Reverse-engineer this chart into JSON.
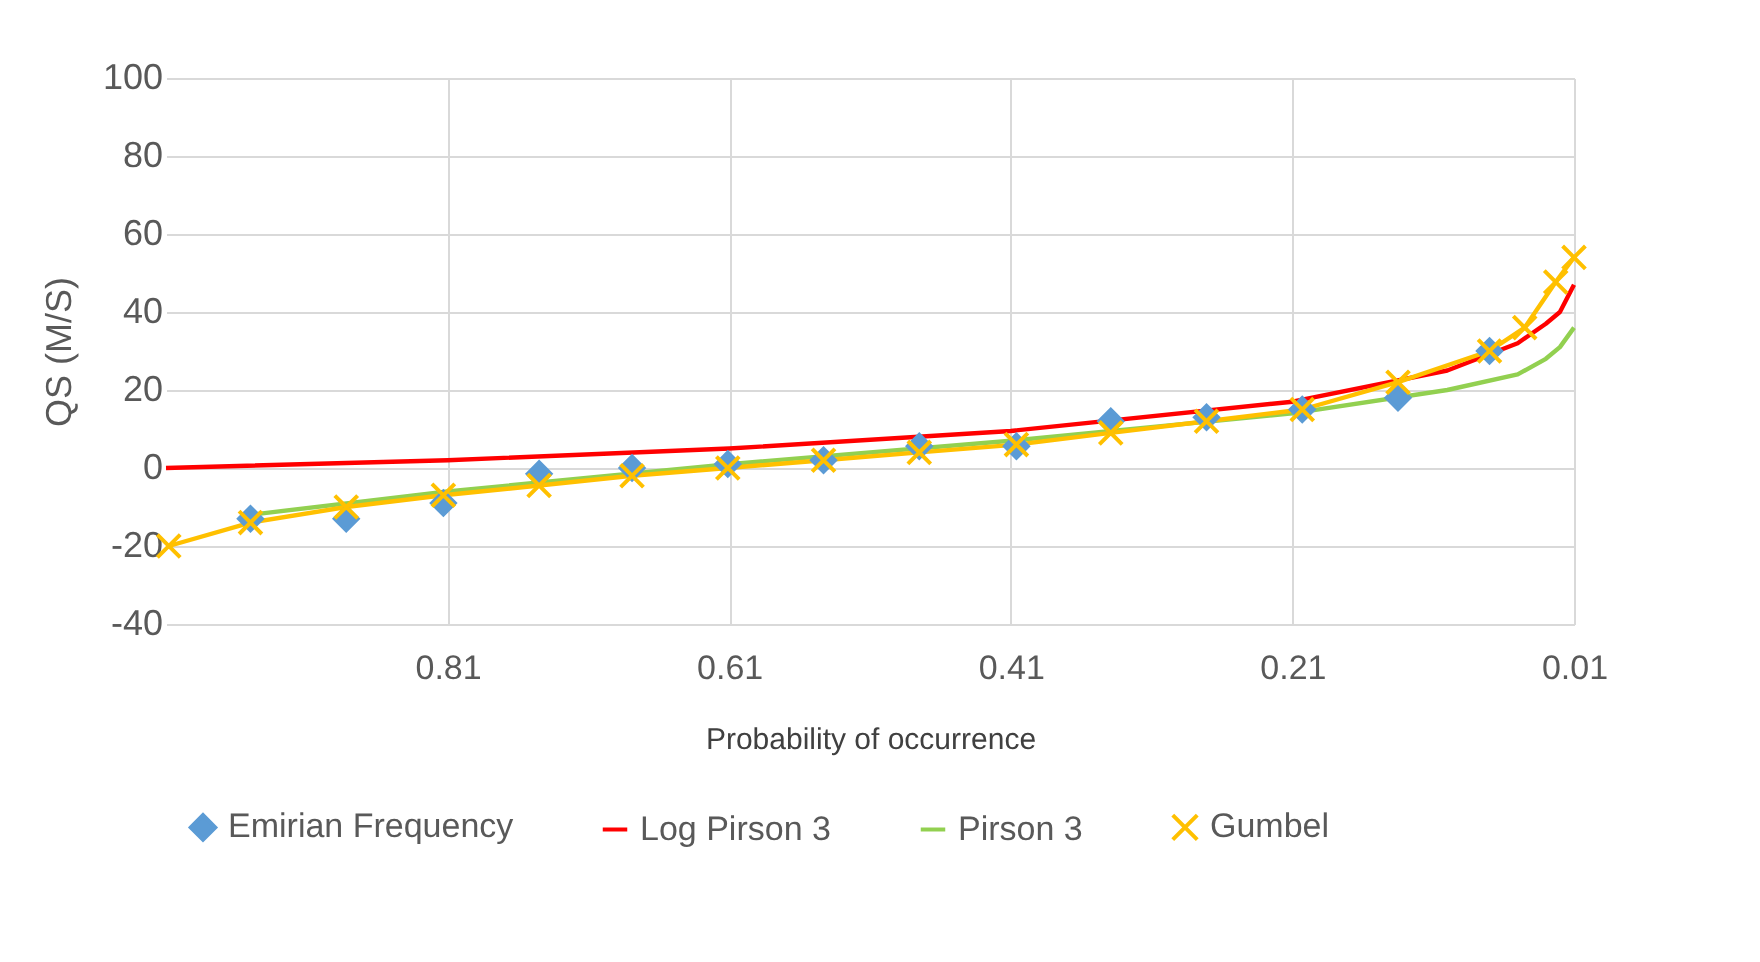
{
  "chart_data": {
    "type": "line",
    "xlabel": "Probability of occurrence",
    "ylabel": "QS (M/S)",
    "xlim": [
      1.01,
      0.01
    ],
    "xticks": [
      0.81,
      0.61,
      0.41,
      0.21,
      0.01
    ],
    "ylim": [
      -40,
      100
    ],
    "yticks": [
      -40,
      -20,
      0,
      20,
      40,
      60,
      80,
      100
    ],
    "grid": true,
    "legend": "bottom",
    "series": [
      {
        "name": "Emirian Frequency",
        "type": "scatter",
        "marker": "diamond",
        "color": "#5b9bd5",
        "x": [
          0.95,
          0.882,
          0.813,
          0.745,
          0.679,
          0.611,
          0.543,
          0.475,
          0.406,
          0.339,
          0.271,
          0.203,
          0.135,
          0.07
        ],
        "values": [
          -13,
          -13,
          -9,
          -1.5,
          0,
          1,
          2,
          5.6,
          5.6,
          12,
          13,
          15,
          18,
          30
        ]
      },
      {
        "name": "Log Pirson 3",
        "type": "line",
        "color": "#ff0000",
        "x": [
          1.01,
          0.81,
          0.61,
          0.41,
          0.21,
          0.1,
          0.05,
          0.03,
          0.02,
          0.01
        ],
        "values": [
          0,
          2,
          5,
          9.5,
          17,
          25,
          32,
          37,
          40,
          47
        ]
      },
      {
        "name": "Pirson 3",
        "type": "line",
        "color": "#92d050",
        "x": [
          0.95,
          0.81,
          0.61,
          0.41,
          0.21,
          0.1,
          0.05,
          0.03,
          0.02,
          0.01
        ],
        "values": [
          -12,
          -6,
          1,
          7,
          14,
          20,
          24,
          28,
          31,
          36
        ]
      },
      {
        "name": "Gumbel",
        "type": "line",
        "marker": "cross",
        "color": "#ffc000",
        "x": [
          1.008,
          0.95,
          0.882,
          0.813,
          0.745,
          0.679,
          0.611,
          0.543,
          0.475,
          0.406,
          0.339,
          0.271,
          0.203,
          0.135,
          0.07,
          0.045,
          0.023,
          0.01
        ],
        "values": [
          -20,
          -14,
          -10,
          -7,
          -4.5,
          -2,
          0,
          2,
          4,
          6,
          9,
          12,
          15,
          22,
          30,
          36,
          47.7,
          54
        ]
      }
    ]
  }
}
